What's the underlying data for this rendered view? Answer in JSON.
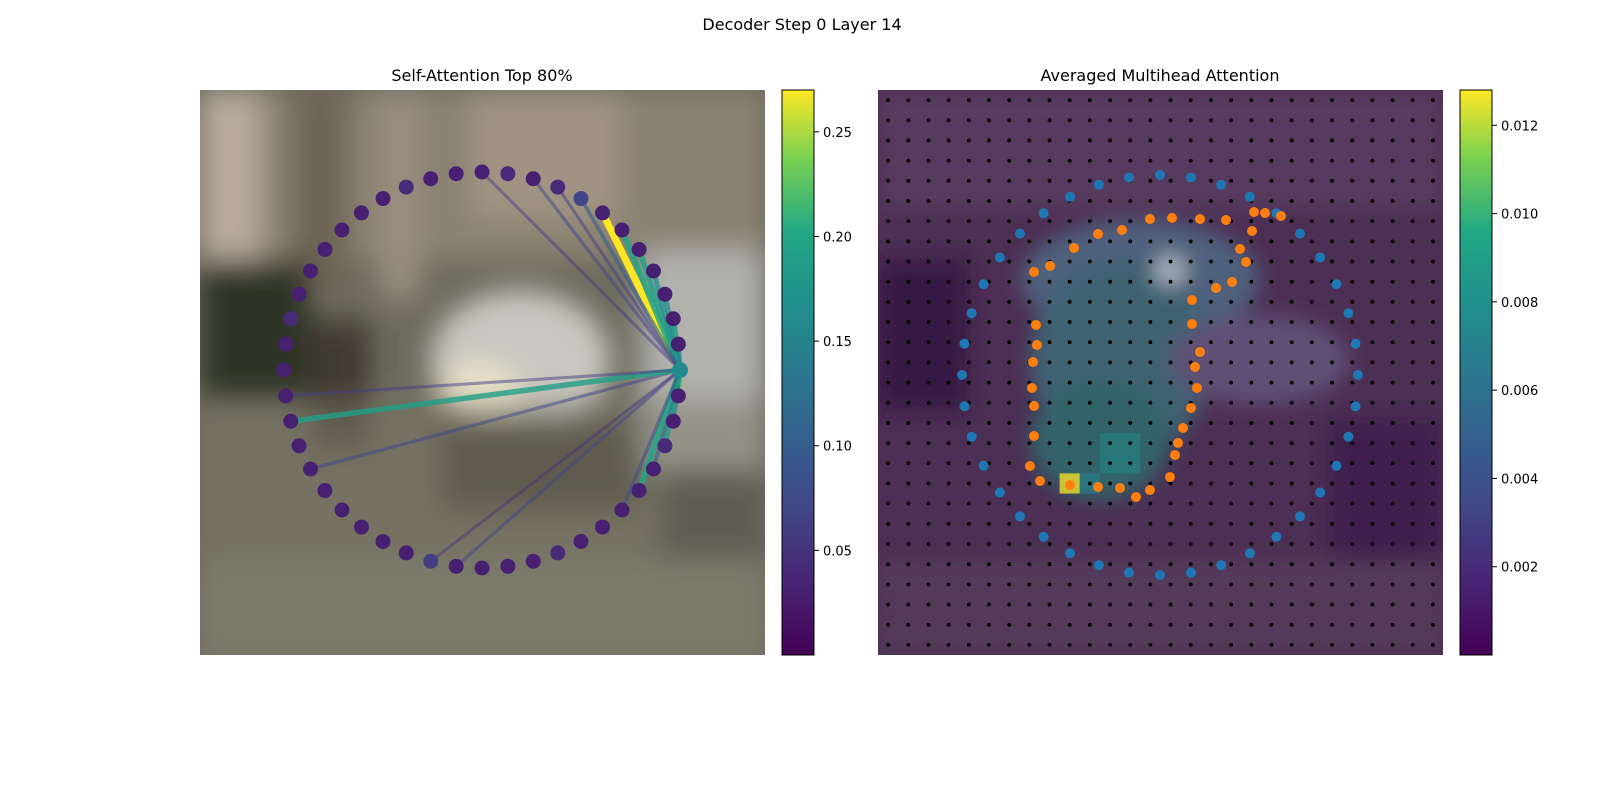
{
  "figure": {
    "suptitle": "Decoder Step 0 Layer 14"
  },
  "chart_data": [
    {
      "type": "network",
      "title": "Self-Attention Top 80%",
      "background": "blurred street photo",
      "node_count": 48,
      "query_node": 12,
      "colormap": "viridis",
      "colorbar": {
        "min": 0.0,
        "max": 0.27,
        "ticks": [
          0.05,
          0.1,
          0.15,
          0.2,
          0.25
        ],
        "tick_labels": [
          "0.05",
          "0.10",
          "0.15",
          "0.20",
          "0.25"
        ]
      },
      "query_value": 0.16,
      "edges": [
        {
          "to": 5,
          "weight": 0.27
        },
        {
          "to": 6,
          "weight": 0.2
        },
        {
          "to": 7,
          "weight": 0.19
        },
        {
          "to": 8,
          "weight": 0.17
        },
        {
          "to": 9,
          "weight": 0.16
        },
        {
          "to": 10,
          "weight": 0.19
        },
        {
          "to": 11,
          "weight": 0.15
        },
        {
          "to": 12,
          "weight": 0.17
        },
        {
          "to": 13,
          "weight": 0.23
        },
        {
          "to": 14,
          "weight": 0.15
        },
        {
          "to": 15,
          "weight": 0.18
        },
        {
          "to": 16,
          "weight": 0.11
        },
        {
          "to": 17,
          "weight": 0.2
        },
        {
          "to": 18,
          "weight": 0.08
        },
        {
          "to": 25,
          "weight": 0.07
        },
        {
          "to": 26,
          "weight": 0.05
        },
        {
          "to": 32,
          "weight": 0.07
        },
        {
          "to": 34,
          "weight": 0.19
        },
        {
          "to": 35,
          "weight": 0.06
        },
        {
          "to": 2,
          "weight": 0.07
        },
        {
          "to": 3,
          "weight": 0.06
        },
        {
          "to": 4,
          "weight": 0.1
        },
        {
          "to": 0,
          "weight": 0.05
        }
      ],
      "node_values": [
        0.03,
        0.04,
        0.03,
        0.04,
        0.07,
        0.03,
        0.03,
        0.03,
        0.03,
        0.03,
        0.03,
        0.03,
        0.16,
        0.03,
        0.03,
        0.04,
        0.03,
        0.03,
        0.03,
        0.03,
        0.03,
        0.04,
        0.03,
        0.03,
        0.03,
        0.03,
        0.06,
        0.03,
        0.03,
        0.03,
        0.03,
        0.03,
        0.03,
        0.03,
        0.03,
        0.03,
        0.03,
        0.03,
        0.04,
        0.03,
        0.03,
        0.03,
        0.03,
        0.03,
        0.03,
        0.04,
        0.03,
        0.03
      ]
    },
    {
      "type": "heatmap",
      "title": "Averaged Multihead Attention",
      "colormap": "viridis",
      "colorbar": {
        "min": 0.0,
        "max": 0.0128,
        "ticks": [
          0.002,
          0.004,
          0.006,
          0.008,
          0.01,
          0.012
        ],
        "tick_labels": [
          "0.002",
          "0.004",
          "0.006",
          "0.008",
          "0.010",
          "0.012"
        ]
      },
      "grid": {
        "rows": 28,
        "cols": 28
      },
      "peak_cell": {
        "row": 19,
        "col": 9,
        "value": 0.0128
      },
      "series": [
        {
          "color": "#1f77b4",
          "shape": "ellipse",
          "points": 40
        },
        {
          "color": "#ff7f0e",
          "shape": "contour",
          "points": 40
        }
      ]
    }
  ],
  "colors": {
    "blue_points": "#1f77b4",
    "orange_points": "#ff7f0e",
    "grid_dots": "#000000"
  }
}
